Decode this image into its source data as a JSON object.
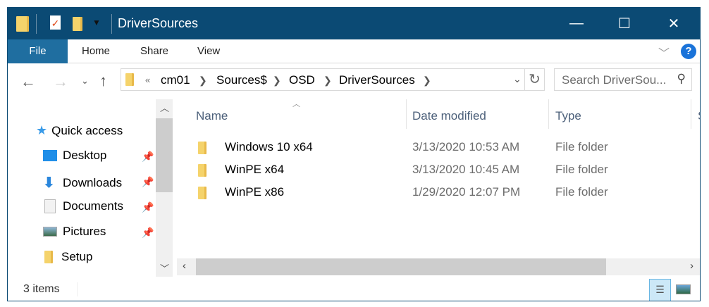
{
  "window": {
    "title": "DriverSources",
    "controls": {
      "minimize": "—",
      "maximize": "☐",
      "close": "✕"
    }
  },
  "ribbon": {
    "tabs": [
      "File",
      "Home",
      "Share",
      "View"
    ],
    "help": "?"
  },
  "address": {
    "overflow": "«",
    "crumbs": [
      "cm01",
      "Sources$",
      "OSD",
      "DriverSources"
    ],
    "search_placeholder": "Search DriverSou..."
  },
  "sidebar": {
    "items": [
      {
        "label": "Quick access",
        "icon": "star-icon"
      },
      {
        "label": "Desktop",
        "icon": "desktop-icon",
        "pinned": true
      },
      {
        "label": "Downloads",
        "icon": "download-icon",
        "pinned": true
      },
      {
        "label": "Documents",
        "icon": "documents-icon",
        "pinned": true
      },
      {
        "label": "Pictures",
        "icon": "pictures-icon",
        "pinned": true
      },
      {
        "label": "Setup",
        "icon": "folder-icon"
      }
    ]
  },
  "columns": [
    "Name",
    "Date modified",
    "Type",
    "S"
  ],
  "files": [
    {
      "name": "Windows 10 x64",
      "date": "3/13/2020 10:53 AM",
      "type": "File folder"
    },
    {
      "name": "WinPE x64",
      "date": "3/13/2020 10:45 AM",
      "type": "File folder"
    },
    {
      "name": "WinPE x86",
      "date": "1/29/2020 12:07 PM",
      "type": "File folder"
    }
  ],
  "status": {
    "count": "3 items"
  },
  "colors": {
    "titlebar": "#0b4a74",
    "file_tab": "#1f6ea0",
    "folder": "#f5d36b"
  }
}
